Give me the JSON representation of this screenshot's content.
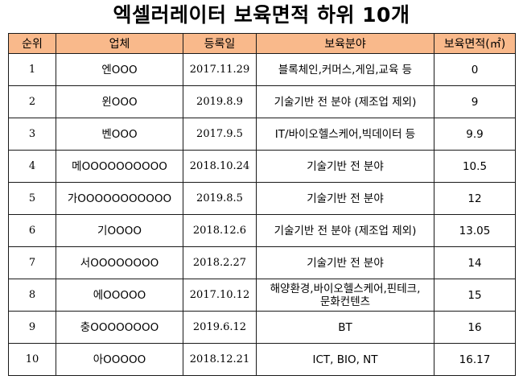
{
  "title": "엑셀러레이터 보육면적 하위 10개",
  "header": {
    "rank": "순위",
    "company": "업체",
    "reg_date": "등록일",
    "field": "보육분야",
    "area": "보육면적(㎡)"
  },
  "rows": [
    {
      "rank": "1",
      "company": "엔OOO",
      "reg_date": "2017.11.29",
      "field": "블록체인,커머스,게임,교육 등",
      "area": "0"
    },
    {
      "rank": "2",
      "company": "윈OOO",
      "reg_date": "2019.8.9",
      "field": "기술기반 전 분야 (제조업 제외)",
      "area": "9"
    },
    {
      "rank": "3",
      "company": "벤OOO",
      "reg_date": "2017.9.5",
      "field": "IT/바이오헬스케어,빅데이터 등",
      "area": "9.9"
    },
    {
      "rank": "4",
      "company": "메OOOOOOOOOO",
      "reg_date": "2018.10.24",
      "field": "기술기반 전 분야",
      "area": "10.5"
    },
    {
      "rank": "5",
      "company": "가OOOOOOOOOOO",
      "reg_date": "2019.8.5",
      "field": "기술기반 전 분야",
      "area": "12"
    },
    {
      "rank": "6",
      "company": "기OOOO",
      "reg_date": "2018.12.6",
      "field": "기술기반 전 분야 (제조업 제외)",
      "area": "13.05"
    },
    {
      "rank": "7",
      "company": "서OOOOOOOO",
      "reg_date": "2018.2.27",
      "field": "기술기반 전 분야",
      "area": "14"
    },
    {
      "rank": "8",
      "company": "에OOOOO",
      "reg_date": "2017.10.12",
      "field": "해양환경,바이오헬스케어,핀테크,\n문화컨텐츠",
      "area": "15"
    },
    {
      "rank": "9",
      "company": "충OOOOOOOO",
      "reg_date": "2019.6.12",
      "field": "BT",
      "area": "16"
    },
    {
      "rank": "10",
      "company": "아OOOOO",
      "reg_date": "2018.12.21",
      "field": "ICT, BIO, NT",
      "area": "16.17"
    }
  ]
}
